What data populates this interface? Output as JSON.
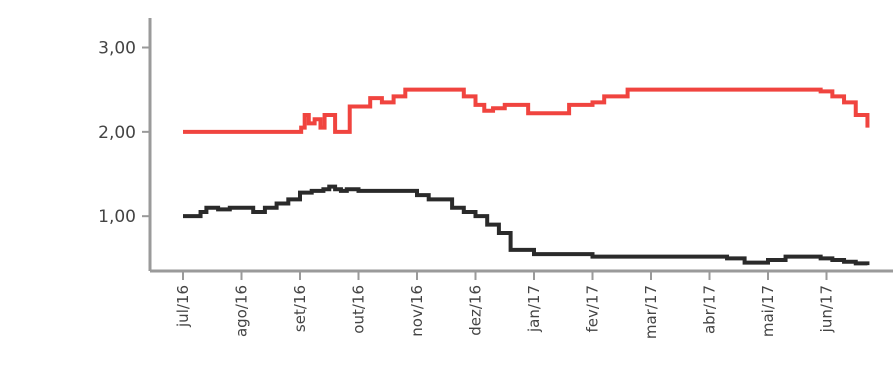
{
  "chart_data": {
    "type": "line",
    "ylabel": "",
    "ytick_labels": [
      "1,00",
      "2,00",
      "3,00"
    ],
    "yticks": [
      1,
      2,
      3
    ],
    "ylim": [
      0.35,
      3.35
    ],
    "x_categories": [
      "jul/16",
      "ago/16",
      "set/16",
      "out/16",
      "nov/16",
      "dez/16",
      "jan/17",
      "fev/17",
      "mar/17",
      "abr/17",
      "mai/17",
      "jun/17"
    ],
    "series": [
      {
        "color": "#f0443f",
        "x": [
          0,
          0.5,
          1.0,
          1.5,
          1.95,
          2.02,
          2.08,
          2.15,
          2.25,
          2.35,
          2.42,
          2.5,
          2.6,
          2.7,
          2.85,
          3.0,
          3.2,
          3.4,
          3.6,
          3.8,
          4.0,
          4.2,
          4.5,
          4.8,
          5.0,
          5.15,
          5.3,
          5.5,
          5.7,
          5.9,
          6.05,
          6.2,
          6.4,
          6.6,
          6.8,
          7.0,
          7.2,
          7.4,
          7.6,
          7.8,
          8.0,
          8.2,
          8.4,
          8.6,
          8.8,
          9.0,
          9.5,
          10.0,
          10.5,
          10.9,
          11.1,
          11.3,
          11.5,
          11.7
        ],
        "y": [
          2.0,
          2.0,
          2.0,
          2.0,
          2.0,
          2.05,
          2.2,
          2.1,
          2.15,
          2.05,
          2.2,
          2.2,
          2.0,
          2.0,
          2.3,
          2.3,
          2.4,
          2.35,
          2.42,
          2.5,
          2.5,
          2.5,
          2.5,
          2.42,
          2.32,
          2.25,
          2.28,
          2.32,
          2.32,
          2.22,
          2.22,
          2.22,
          2.22,
          2.32,
          2.32,
          2.35,
          2.42,
          2.42,
          2.5,
          2.5,
          2.5,
          2.5,
          2.5,
          2.5,
          2.5,
          2.5,
          2.5,
          2.5,
          2.5,
          2.48,
          2.42,
          2.35,
          2.2,
          2.05
        ]
      },
      {
        "color": "#2a2a2a",
        "x": [
          0,
          0.2,
          0.3,
          0.4,
          0.6,
          0.8,
          1.0,
          1.2,
          1.4,
          1.6,
          1.8,
          2.0,
          2.2,
          2.4,
          2.5,
          2.6,
          2.7,
          2.8,
          3.0,
          3.2,
          3.4,
          3.6,
          3.8,
          4.0,
          4.2,
          4.4,
          4.6,
          4.8,
          5.0,
          5.2,
          5.4,
          5.6,
          6.0,
          6.5,
          7.0,
          7.5,
          8.0,
          8.5,
          9.0,
          9.3,
          9.6,
          10.0,
          10.3,
          10.6,
          10.9,
          11.1,
          11.3,
          11.5,
          11.7
        ],
        "y": [
          1.0,
          1.0,
          1.05,
          1.1,
          1.08,
          1.1,
          1.1,
          1.05,
          1.1,
          1.15,
          1.2,
          1.28,
          1.3,
          1.32,
          1.35,
          1.32,
          1.3,
          1.32,
          1.3,
          1.3,
          1.3,
          1.3,
          1.3,
          1.25,
          1.2,
          1.2,
          1.1,
          1.05,
          1.0,
          0.9,
          0.8,
          0.6,
          0.55,
          0.55,
          0.52,
          0.52,
          0.52,
          0.52,
          0.52,
          0.5,
          0.45,
          0.48,
          0.52,
          0.52,
          0.5,
          0.48,
          0.46,
          0.44,
          0.42
        ]
      }
    ],
    "grid": false,
    "axis_color": "#9a9a9a"
  }
}
